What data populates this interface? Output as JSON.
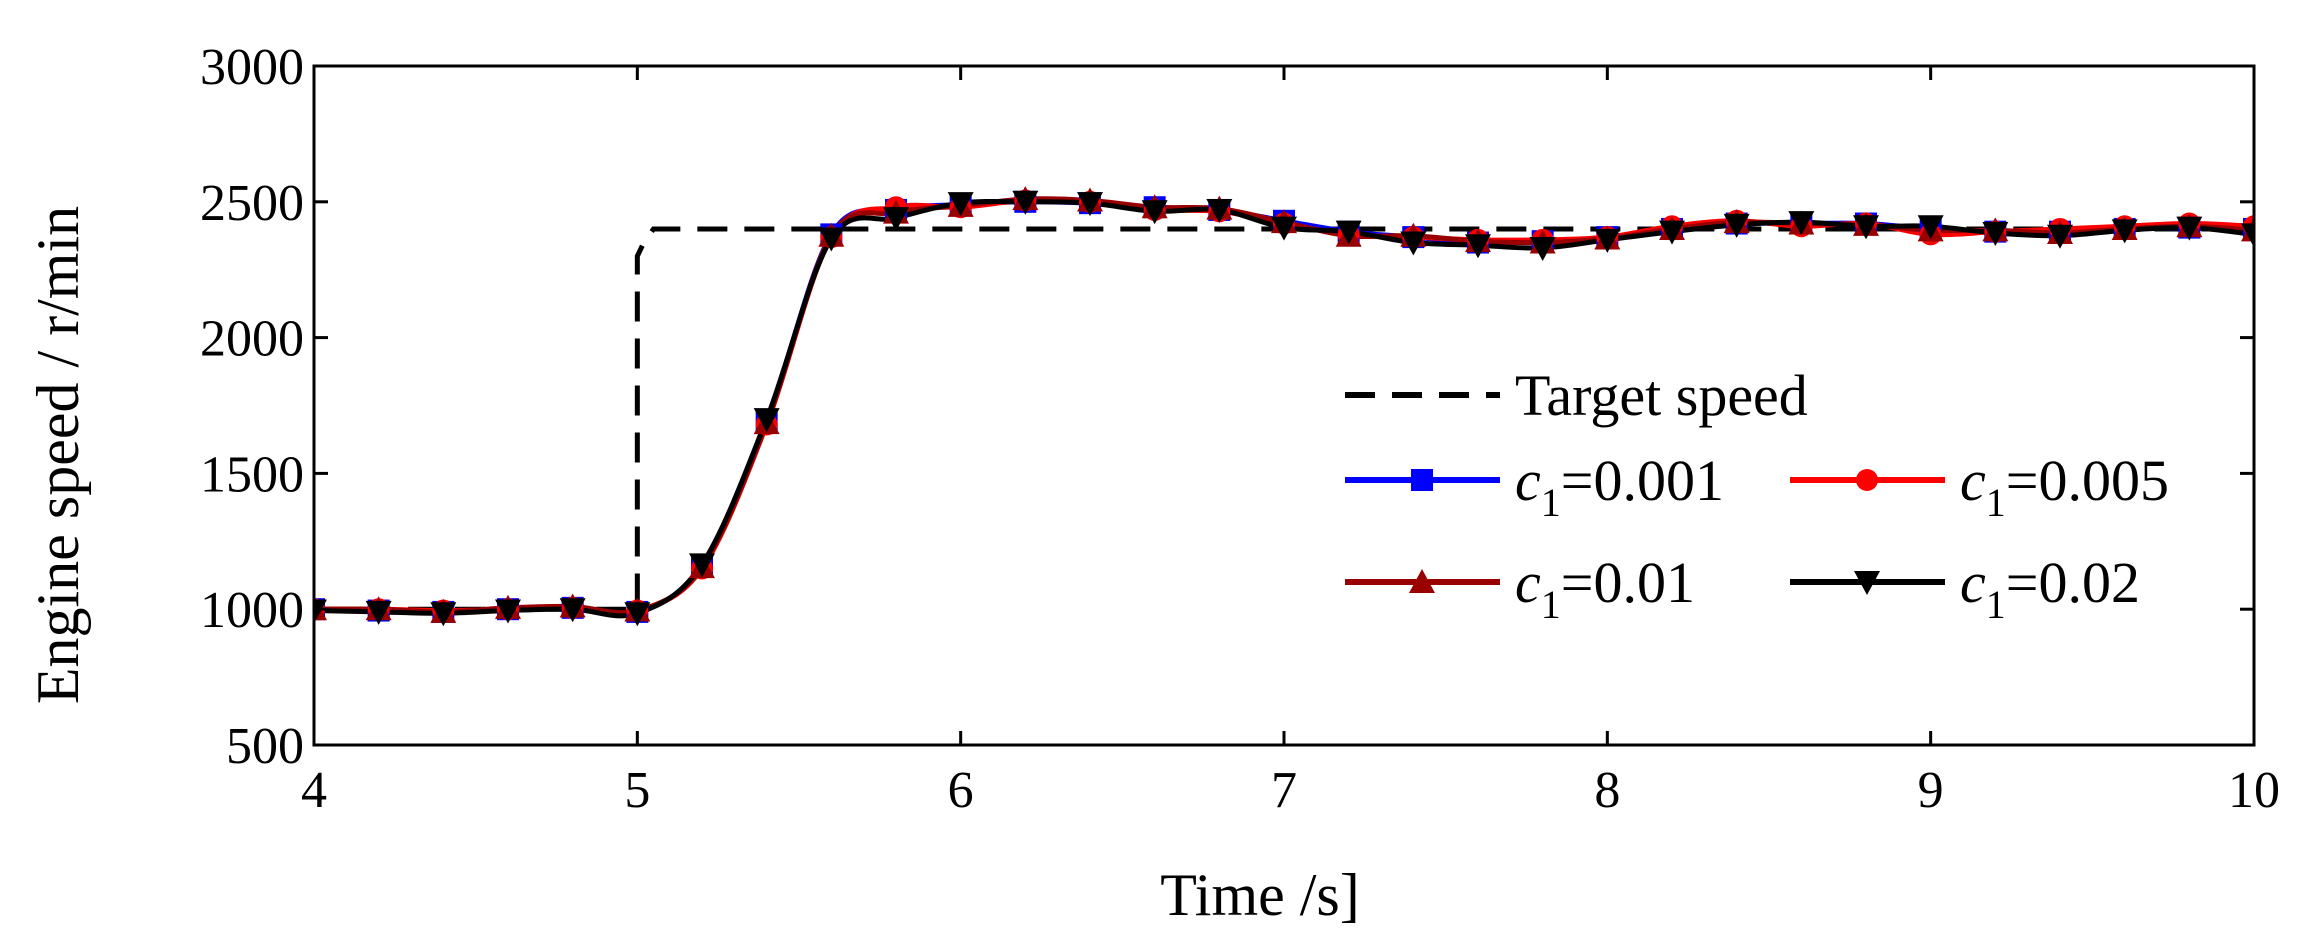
{
  "chart_data": {
    "type": "line",
    "title": "",
    "xlabel": "Time /s]",
    "ylabel": "Engine speed / r/min",
    "xlim": [
      4,
      10
    ],
    "ylim": [
      500,
      3000
    ],
    "xticks": [
      4,
      5,
      6,
      7,
      8,
      9,
      10
    ],
    "yticks": [
      500,
      1000,
      1500,
      2000,
      2500,
      3000
    ],
    "xtick_labels": [
      "4",
      "5",
      "6",
      "7",
      "8",
      "9",
      "10"
    ],
    "ytick_labels": [
      "500",
      "1000",
      "1500",
      "2000",
      "2500",
      "3000"
    ],
    "grid": false,
    "legend_position": "center-right",
    "target": {
      "name": "Target speed",
      "color": "#000000",
      "style": "dashed",
      "x": [
        4,
        5.0,
        5.0,
        5.02,
        5.05,
        5.1,
        10
      ],
      "y": [
        1000,
        1000,
        2300,
        2350,
        2400,
        2400,
        2400
      ]
    },
    "marker_x": [
      4.0,
      4.2,
      4.4,
      4.6,
      4.8,
      5.0,
      5.2,
      5.4,
      5.6,
      5.8,
      6.0,
      6.2,
      6.4,
      6.6,
      6.8,
      7.0,
      7.2,
      7.4,
      7.6,
      7.8,
      8.0,
      8.2,
      8.4,
      8.6,
      8.8,
      9.0,
      9.2,
      9.4,
      9.6,
      9.8,
      10.0
    ],
    "series": [
      {
        "name": "c1=0.001",
        "label_var": "c",
        "label_sub": "1",
        "label_value": "=0.001",
        "color": "#0000ff",
        "marker": "square",
        "values": [
          1000,
          995,
          990,
          1000,
          1005,
          990,
          1160,
          1690,
          2380,
          2470,
          2490,
          2500,
          2495,
          2480,
          2470,
          2430,
          2390,
          2370,
          2350,
          2355,
          2370,
          2400,
          2420,
          2420,
          2420,
          2400,
          2390,
          2390,
          2400,
          2405,
          2400
        ]
      },
      {
        "name": "c1=0.005",
        "label_var": "c",
        "label_sub": "1",
        "label_value": "=0.005",
        "color": "#ff0000",
        "marker": "circle",
        "values": [
          1000,
          1000,
          995,
          1000,
          1005,
          995,
          1150,
          1680,
          2370,
          2480,
          2480,
          2505,
          2500,
          2470,
          2465,
          2420,
          2380,
          2370,
          2360,
          2360,
          2370,
          2410,
          2430,
          2410,
          2420,
          2380,
          2390,
          2400,
          2410,
          2420,
          2410
        ]
      },
      {
        "name": "c1=0.01",
        "label_var": "c",
        "label_sub": "1",
        "label_value": "=0.01",
        "color": "#990000",
        "marker": "triangle-up",
        "values": [
          1000,
          1000,
          990,
          1005,
          1010,
          995,
          1155,
          1685,
          2375,
          2460,
          2485,
          2510,
          2505,
          2480,
          2475,
          2425,
          2375,
          2375,
          2355,
          2350,
          2365,
          2400,
          2425,
          2420,
          2415,
          2395,
          2395,
          2385,
          2400,
          2410,
          2395
        ]
      },
      {
        "name": "c1=0.02",
        "label_var": "c",
        "label_sub": "1",
        "label_value": "=0.02",
        "color": "#000000",
        "marker": "triangle-down",
        "values": [
          995,
          990,
          985,
          995,
          1000,
          985,
          1165,
          1700,
          2365,
          2440,
          2495,
          2500,
          2495,
          2465,
          2470,
          2405,
          2390,
          2350,
          2340,
          2330,
          2360,
          2390,
          2415,
          2425,
          2410,
          2410,
          2385,
          2375,
          2395,
          2405,
          2380
        ]
      }
    ]
  }
}
